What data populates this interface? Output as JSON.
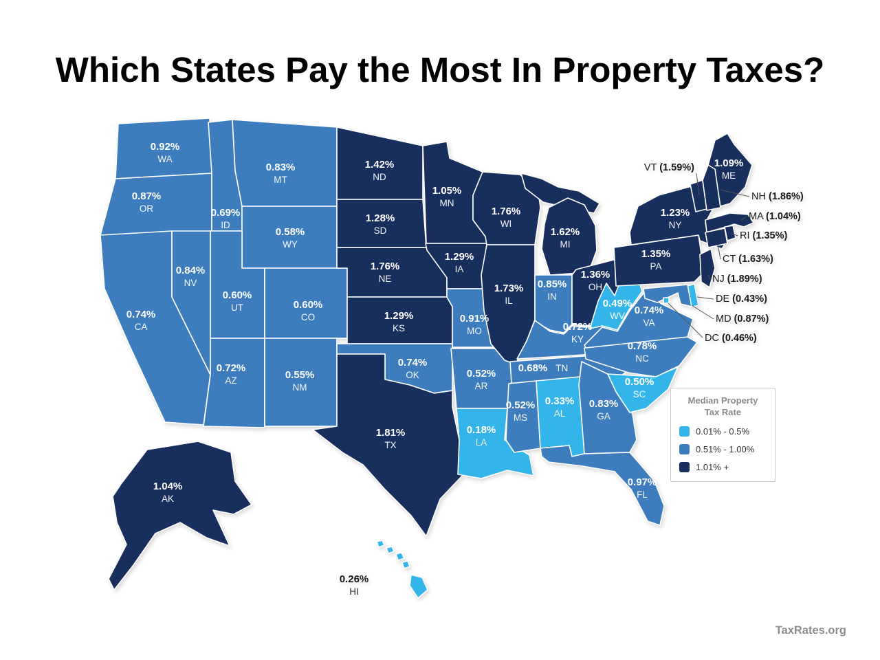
{
  "page": {
    "title": "Which States Pay the Most In Property Taxes?",
    "attribution": "TaxRates.org"
  },
  "colors": {
    "low": "#33b5ea",
    "mid": "#3d7dbd",
    "high": "#182f5e",
    "map_label": "#ffffff",
    "callout_label": "#1a1a1a",
    "border": "#ffffff"
  },
  "legend": {
    "title_lines": [
      "Median Property",
      "Tax Rate"
    ],
    "items": [
      {
        "bucket": "low",
        "label": "0.01% - 0.5%"
      },
      {
        "bucket": "mid",
        "label": "0.51% - 1.00%"
      },
      {
        "bucket": "high",
        "label": "1.01% +"
      }
    ]
  },
  "chart_data": {
    "type": "choropleth",
    "region": "United States",
    "metric": "Median Property Tax Rate",
    "legend_position": "right",
    "buckets": {
      "low": "0.01% - 0.5%",
      "mid": "0.51% - 1.00%",
      "high": "1.01% +"
    },
    "states": [
      {
        "abbr": "WA",
        "rate": "0.92%",
        "bucket": "mid"
      },
      {
        "abbr": "OR",
        "rate": "0.87%",
        "bucket": "mid"
      },
      {
        "abbr": "CA",
        "rate": "0.74%",
        "bucket": "mid"
      },
      {
        "abbr": "NV",
        "rate": "0.84%",
        "bucket": "mid"
      },
      {
        "abbr": "ID",
        "rate": "0.69%",
        "bucket": "mid"
      },
      {
        "abbr": "MT",
        "rate": "0.83%",
        "bucket": "mid"
      },
      {
        "abbr": "WY",
        "rate": "0.58%",
        "bucket": "mid"
      },
      {
        "abbr": "UT",
        "rate": "0.60%",
        "bucket": "mid"
      },
      {
        "abbr": "CO",
        "rate": "0.60%",
        "bucket": "mid"
      },
      {
        "abbr": "AZ",
        "rate": "0.72%",
        "bucket": "mid"
      },
      {
        "abbr": "NM",
        "rate": "0.55%",
        "bucket": "mid"
      },
      {
        "abbr": "ND",
        "rate": "1.42%",
        "bucket": "high"
      },
      {
        "abbr": "SD",
        "rate": "1.28%",
        "bucket": "high"
      },
      {
        "abbr": "NE",
        "rate": "1.76%",
        "bucket": "high"
      },
      {
        "abbr": "KS",
        "rate": "1.29%",
        "bucket": "high"
      },
      {
        "abbr": "OK",
        "rate": "0.74%",
        "bucket": "mid"
      },
      {
        "abbr": "TX",
        "rate": "1.81%",
        "bucket": "high"
      },
      {
        "abbr": "MN",
        "rate": "1.05%",
        "bucket": "high"
      },
      {
        "abbr": "IA",
        "rate": "1.29%",
        "bucket": "high"
      },
      {
        "abbr": "MO",
        "rate": "0.91%",
        "bucket": "mid"
      },
      {
        "abbr": "AR",
        "rate": "0.52%",
        "bucket": "mid"
      },
      {
        "abbr": "LA",
        "rate": "0.18%",
        "bucket": "low"
      },
      {
        "abbr": "WI",
        "rate": "1.76%",
        "bucket": "high"
      },
      {
        "abbr": "IL",
        "rate": "1.73%",
        "bucket": "high"
      },
      {
        "abbr": "MI",
        "rate": "1.62%",
        "bucket": "high"
      },
      {
        "abbr": "IN",
        "rate": "0.85%",
        "bucket": "mid"
      },
      {
        "abbr": "OH",
        "rate": "1.36%",
        "bucket": "high"
      },
      {
        "abbr": "KY",
        "rate": "0.72%",
        "bucket": "mid"
      },
      {
        "abbr": "TN",
        "rate": "0.68%",
        "bucket": "mid"
      },
      {
        "abbr": "MS",
        "rate": "0.52%",
        "bucket": "mid"
      },
      {
        "abbr": "AL",
        "rate": "0.33%",
        "bucket": "low"
      },
      {
        "abbr": "GA",
        "rate": "0.83%",
        "bucket": "mid"
      },
      {
        "abbr": "SC",
        "rate": "0.50%",
        "bucket": "low"
      },
      {
        "abbr": "NC",
        "rate": "0.78%",
        "bucket": "mid"
      },
      {
        "abbr": "VA",
        "rate": "0.74%",
        "bucket": "mid"
      },
      {
        "abbr": "WV",
        "rate": "0.49%",
        "bucket": "low"
      },
      {
        "abbr": "FL",
        "rate": "0.97%",
        "bucket": "mid"
      },
      {
        "abbr": "PA",
        "rate": "1.35%",
        "bucket": "high"
      },
      {
        "abbr": "NY",
        "rate": "1.23%",
        "bucket": "high"
      },
      {
        "abbr": "ME",
        "rate": "1.09%",
        "bucket": "high"
      },
      {
        "abbr": "AK",
        "rate": "1.04%",
        "bucket": "high"
      },
      {
        "abbr": "HI",
        "rate": "0.26%",
        "bucket": "low"
      },
      {
        "abbr": "VT",
        "rate": "1.59%",
        "bucket": "high",
        "callout": true
      },
      {
        "abbr": "NH",
        "rate": "1.86%",
        "bucket": "high",
        "callout": true
      },
      {
        "abbr": "MA",
        "rate": "1.04%",
        "bucket": "high",
        "callout": true
      },
      {
        "abbr": "RI",
        "rate": "1.35%",
        "bucket": "high",
        "callout": true
      },
      {
        "abbr": "CT",
        "rate": "1.63%",
        "bucket": "high",
        "callout": true
      },
      {
        "abbr": "NJ",
        "rate": "1.89%",
        "bucket": "high",
        "callout": true
      },
      {
        "abbr": "DE",
        "rate": "0.43%",
        "bucket": "low",
        "callout": true
      },
      {
        "abbr": "MD",
        "rate": "0.87%",
        "bucket": "mid",
        "callout": true
      },
      {
        "abbr": "DC",
        "rate": "0.46%",
        "bucket": "low",
        "callout": true
      }
    ]
  }
}
